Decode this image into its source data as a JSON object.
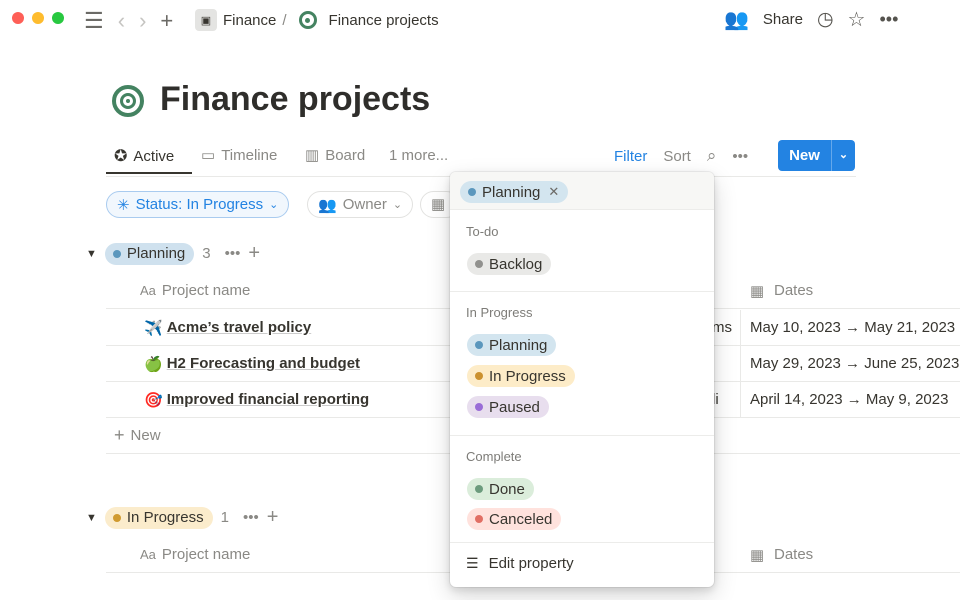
{
  "window": {
    "controls": [
      "close",
      "minimize",
      "maximize"
    ]
  },
  "topbar": {
    "breadcrumb_parent": "Finance",
    "breadcrumb_sep": "/",
    "breadcrumb_current": "Finance projects",
    "share": "Share"
  },
  "page": {
    "title": "Finance projects",
    "icon": "target-icon"
  },
  "tabs": [
    {
      "label": "Active",
      "icon": "star-circle-icon",
      "active": true
    },
    {
      "label": "Timeline",
      "icon": "timeline-icon"
    },
    {
      "label": "Board",
      "icon": "board-icon"
    },
    {
      "label": "1 more..."
    }
  ],
  "toolbar": {
    "filter": "Filter",
    "sort": "Sort",
    "new": "New"
  },
  "filters": {
    "status": "Status: In Progress",
    "owner": "Owner"
  },
  "groups": [
    {
      "label": "Planning",
      "count": "3",
      "color": "#cfe1ee",
      "dot": "#5b97bd",
      "columns": {
        "name": "Project name",
        "dates": "Dates"
      },
      "rows": [
        {
          "emoji": "✈️",
          "name": "Acme’s travel policy",
          "owner_fragment": "ms",
          "dates": "May 10, 2023 → May 21, 2023"
        },
        {
          "emoji": "🍏",
          "name": "H2 Forecasting and budget",
          "owner_fragment": "",
          "dates": "May 29, 2023 → June 25, 2023"
        },
        {
          "emoji": "🎯",
          "name": "Improved financial reporting",
          "owner_fragment": "li",
          "dates": "April 14, 2023 → May 9, 2023"
        }
      ],
      "new_label": "New"
    },
    {
      "label": "In Progress",
      "count": "1",
      "color": "#fbeccc",
      "dot": "#d09a2f",
      "columns": {
        "name": "Project name",
        "dates": "Dates"
      }
    }
  ],
  "dropdown": {
    "selected": {
      "label": "Planning",
      "bg": "#d3e5ef",
      "dot": "#5b97bd"
    },
    "sections": [
      {
        "title": "To-do",
        "options": [
          {
            "label": "Backlog",
            "bg": "#e9e9e7",
            "dot": "#91918e"
          }
        ]
      },
      {
        "title": "In Progress",
        "options": [
          {
            "label": "Planning",
            "bg": "#d3e5ef",
            "dot": "#5b97bd"
          },
          {
            "label": "In Progress",
            "bg": "#fdecc8",
            "dot": "#cb912f"
          },
          {
            "label": "Paused",
            "bg": "#e8deee",
            "dot": "#9a6dd7"
          }
        ]
      },
      {
        "title": "Complete",
        "options": [
          {
            "label": "Done",
            "bg": "#dbeddb",
            "dot": "#6c9b7d"
          },
          {
            "label": "Canceled",
            "bg": "#ffe2dd",
            "dot": "#e16f64"
          }
        ]
      }
    ],
    "edit": "Edit property"
  },
  "colors": {
    "accent": "#2383e2",
    "title_icon": "#448361"
  }
}
